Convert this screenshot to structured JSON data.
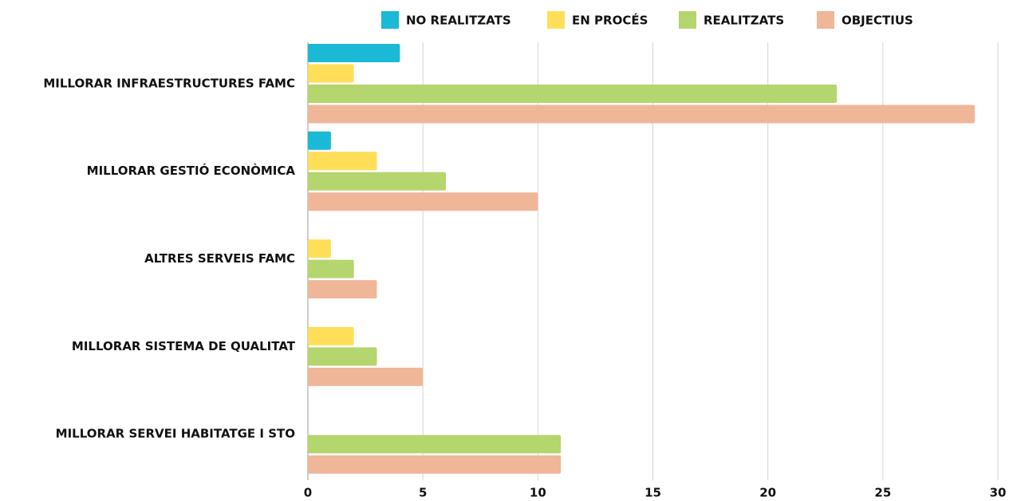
{
  "chart_data": {
    "type": "bar",
    "orientation": "horizontal",
    "categories": [
      "MILLORAR INFRAESTRUCTURES FAMC",
      "MILLORAR GESTIÓ ECONÒMICA",
      "ALTRES SERVEIS FAMC",
      "MILLORAR SISTEMA DE QUALITAT",
      "MILLORAR SERVEI HABITATGE I STO"
    ],
    "series": [
      {
        "name": "NO REALITZATS",
        "color": "#1ab9d6",
        "values": [
          4,
          1,
          0,
          0,
          0
        ]
      },
      {
        "name": "EN PROCÉS",
        "color": "#ffdf5a",
        "values": [
          2,
          3,
          1,
          2,
          0
        ]
      },
      {
        "name": "REALITZATS",
        "color": "#b5d56e",
        "values": [
          23,
          6,
          2,
          3,
          11
        ]
      },
      {
        "name": "OBJECTIUS",
        "color": "#f0b698",
        "values": [
          29,
          10,
          3,
          5,
          11
        ]
      }
    ],
    "xlim": [
      0,
      30
    ],
    "xticks": [
      0,
      5,
      10,
      15,
      20,
      25,
      30
    ],
    "grid": true,
    "legend": "top"
  }
}
